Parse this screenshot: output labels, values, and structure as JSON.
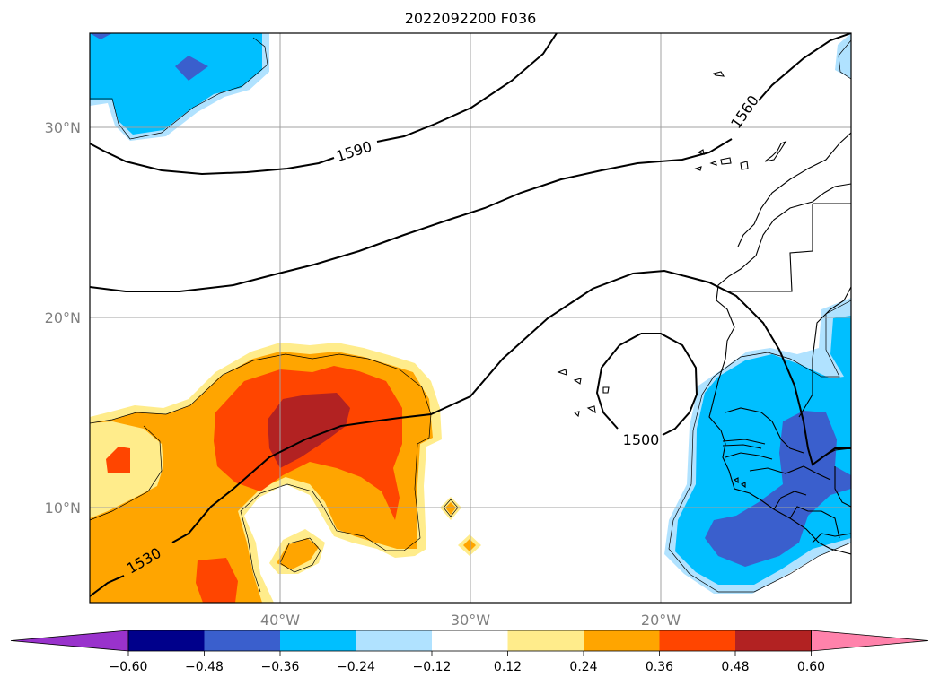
{
  "title": "2022092200 F036",
  "map": {
    "lat_labels": [
      "30°N",
      "20°N",
      "10°N"
    ],
    "lon_labels": [
      "40°W",
      "30°W",
      "20°W"
    ],
    "extent": {
      "lon": [
        -50,
        -10
      ],
      "lat": [
        5,
        35
      ]
    },
    "gridlines": true
  },
  "contours": {
    "labels": [
      "1590",
      "1560",
      "1530",
      "1500"
    ]
  },
  "colorbar": {
    "tick_labels": [
      "−0.60",
      "−0.48",
      "−0.36",
      "−0.24",
      "−0.12",
      "0.12",
      "0.24",
      "0.36",
      "0.48",
      "0.60"
    ],
    "colors": [
      "#9932cc",
      "#00008b",
      "#3a5fcd",
      "#00bfff",
      "#b0e2ff",
      "#ffffff",
      "#ffec8b",
      "#ffa500",
      "#ff4500",
      "#b22222",
      "#ff82ab"
    ],
    "extend": "both"
  }
}
